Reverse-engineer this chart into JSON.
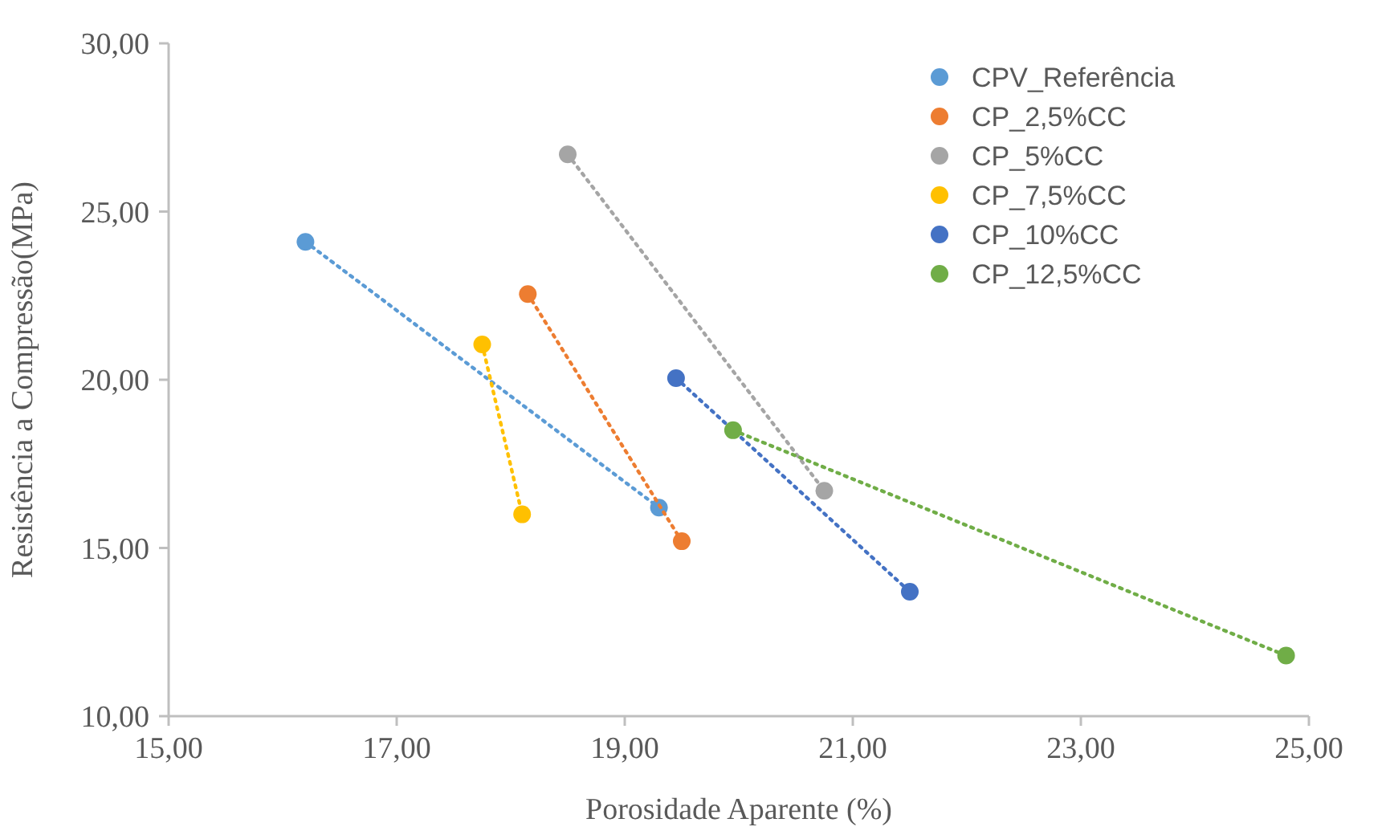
{
  "chart_data": {
    "type": "line",
    "xlabel": "Porosidade Aparente (%)",
    "ylabel": "Resistência a Compressão(MPa)",
    "xlim": [
      15,
      25
    ],
    "xticks": [
      {
        "value": 15,
        "label": "15,00"
      },
      {
        "value": 17,
        "label": "17,00"
      },
      {
        "value": 19,
        "label": "19,00"
      },
      {
        "value": 21,
        "label": "21,00"
      },
      {
        "value": 23,
        "label": "23,00"
      },
      {
        "value": 25,
        "label": "25,00"
      }
    ],
    "ylim": [
      10,
      30
    ],
    "yticks": [
      {
        "value": 10,
        "label": "10,00"
      },
      {
        "value": 15,
        "label": "15,00"
      },
      {
        "value": 20,
        "label": "20,00"
      },
      {
        "value": 25,
        "label": "25,00"
      },
      {
        "value": 30,
        "label": "30,00"
      }
    ],
    "grid": false,
    "legend": "top right",
    "marker": "circle",
    "line_style": "dotted",
    "series": [
      {
        "name": "CPV_Referência",
        "color": "#5b9bd5",
        "x": [
          16.2,
          19.3
        ],
        "values": [
          24.1,
          16.2
        ]
      },
      {
        "name": "CP_2,5%CC",
        "color": "#ed7d31",
        "x": [
          18.15,
          19.5
        ],
        "values": [
          22.55,
          15.2
        ]
      },
      {
        "name": "CP_5%CC",
        "color": "#a5a5a5",
        "x": [
          18.5,
          20.75
        ],
        "values": [
          26.7,
          16.7
        ]
      },
      {
        "name": "CP_7,5%CC",
        "color": "#ffc000",
        "x": [
          17.75,
          18.1
        ],
        "values": [
          21.05,
          16.0
        ]
      },
      {
        "name": "CP_10%CC",
        "color": "#4472c4",
        "x": [
          19.45,
          21.5
        ],
        "values": [
          20.05,
          13.7
        ]
      },
      {
        "name": "CP_12,5%CC",
        "color": "#70ad47",
        "x": [
          19.95,
          24.8
        ],
        "values": [
          18.5,
          11.8
        ]
      }
    ]
  }
}
